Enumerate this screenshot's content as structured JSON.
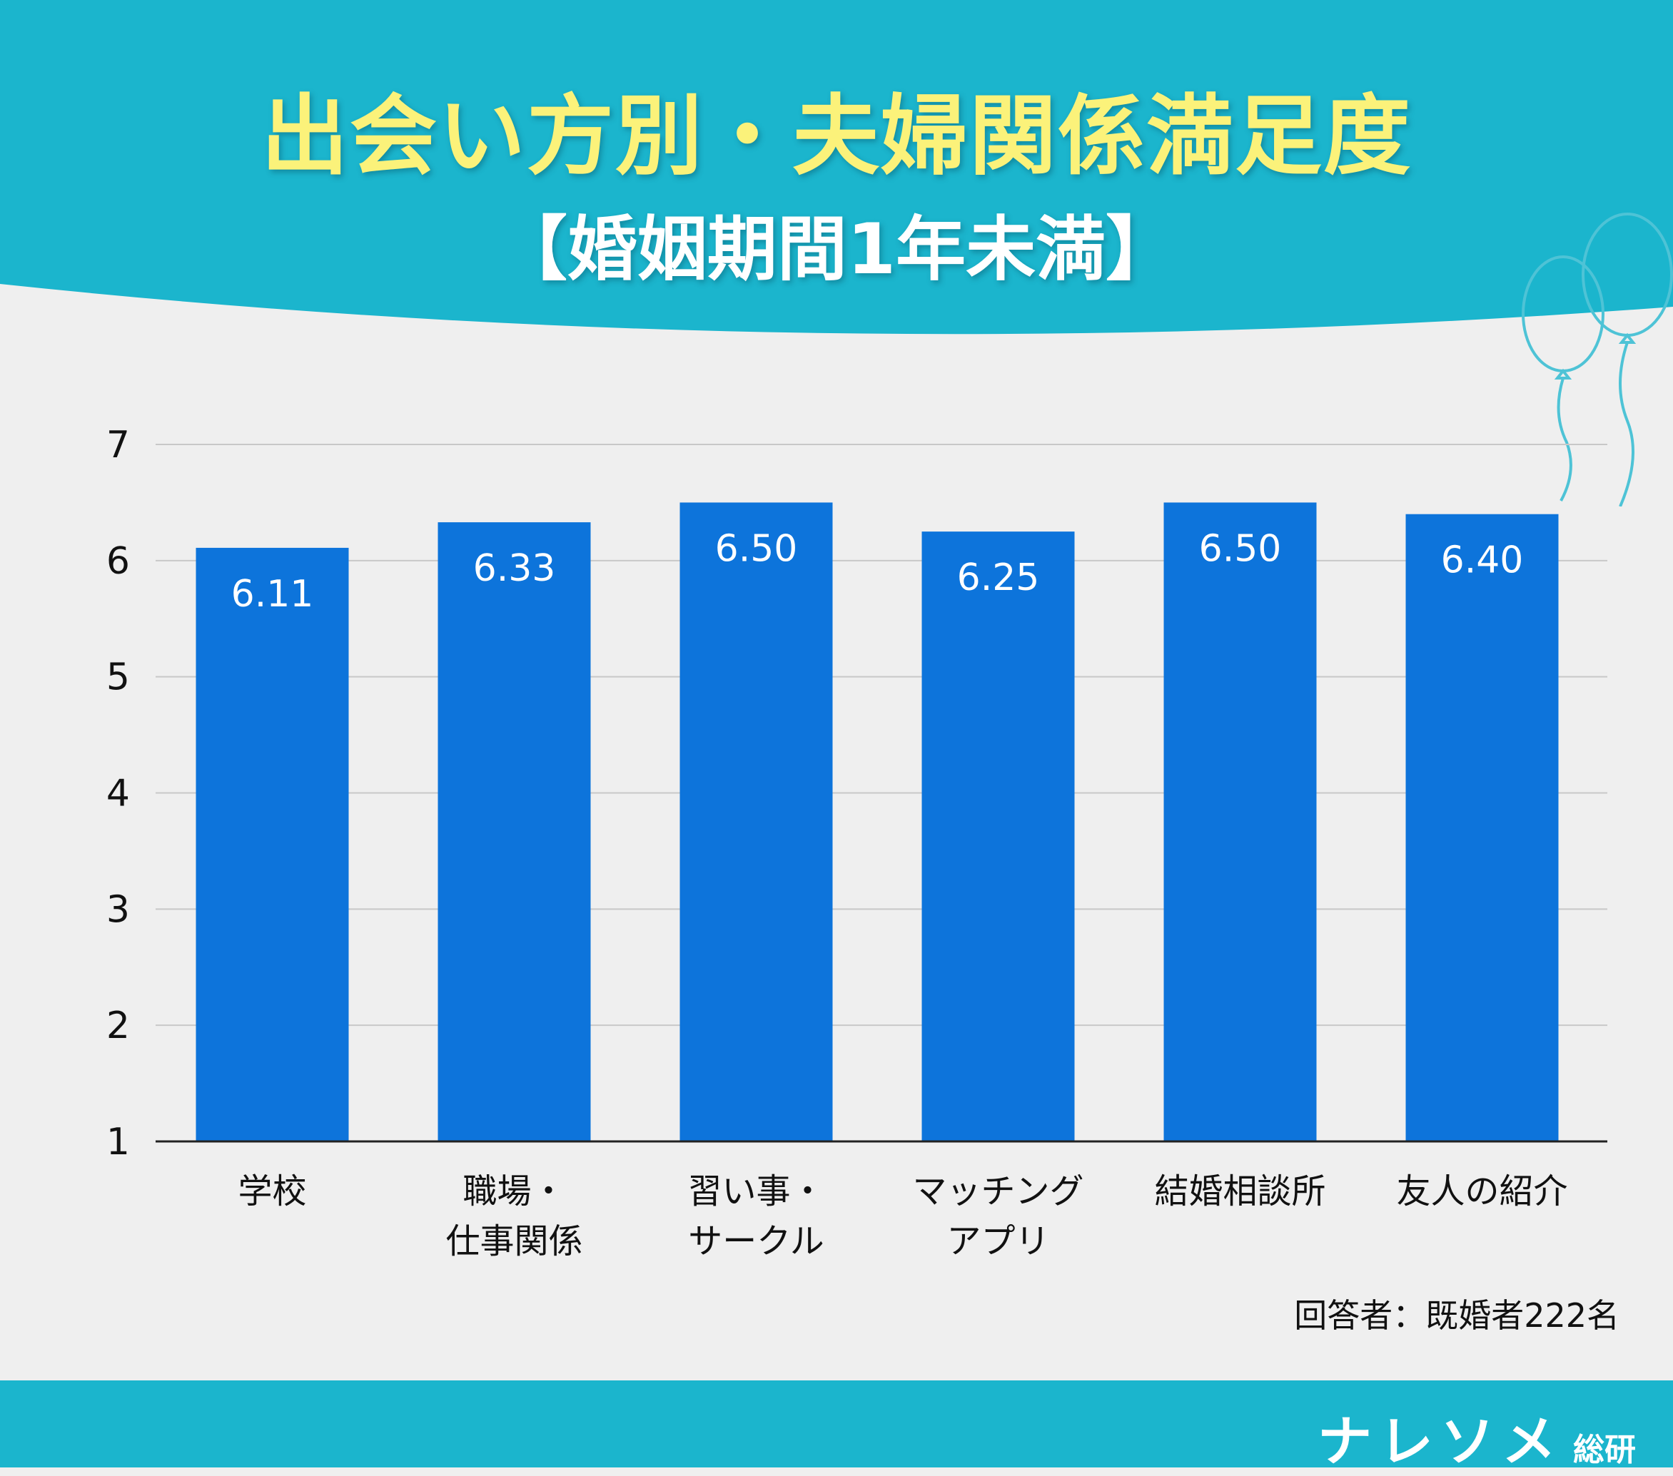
{
  "header": {
    "title": "出会い方別・夫婦関係満足度",
    "subtitle": "【婚姻期間1年未満】",
    "background_color": "#1bb5cd",
    "title_color": "#fbf27a"
  },
  "chart_data": {
    "type": "bar",
    "title": "出会い方別・夫婦関係満足度",
    "subtitle": "【婚姻期間1年未満】",
    "categories": [
      "学校",
      "職場・仕事関係",
      "習い事・サークル",
      "マッチングアプリ",
      "結婚相談所",
      "友人の紹介"
    ],
    "category_label_lines": [
      [
        "学校"
      ],
      [
        "職場・",
        "仕事関係"
      ],
      [
        "習い事・",
        "サークル"
      ],
      [
        "マッチング",
        "アプリ"
      ],
      [
        "結婚相談所"
      ],
      [
        "友人の紹介"
      ]
    ],
    "values": [
      6.11,
      6.33,
      6.5,
      6.25,
      6.5,
      6.4
    ],
    "value_labels": [
      "6.11",
      "6.33",
      "6.50",
      "6.25",
      "6.50",
      "6.40"
    ],
    "ylim": [
      1,
      7
    ],
    "yticks": [
      "1",
      "2",
      "3",
      "4",
      "5",
      "6",
      "7"
    ],
    "grid": true,
    "bar_color": "#0d74db",
    "xlabel": "",
    "ylabel": ""
  },
  "note": "回答者：既婚者222名",
  "footer": {
    "brand_main": "ナレソメ",
    "brand_sub": "総研",
    "band_color": "#1bb5cd"
  },
  "decoration": {
    "icon": "balloon-icon"
  }
}
